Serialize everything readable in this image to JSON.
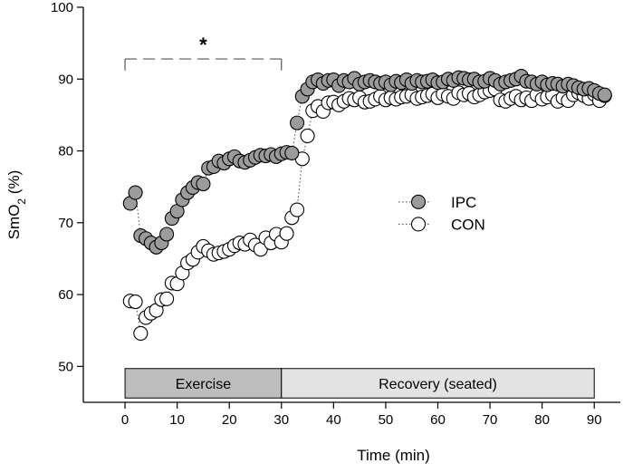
{
  "chart_data": {
    "type": "scatter",
    "xlabel": "Time (min)",
    "ylabel_main": "SmO",
    "ylabel_sub": "2",
    "ylabel_unit": " (%)",
    "xlim": [
      -8,
      95
    ],
    "ylim": [
      45,
      100
    ],
    "xticks": [
      0,
      10,
      20,
      30,
      40,
      50,
      60,
      70,
      80,
      90
    ],
    "yticks": [
      50,
      60,
      70,
      80,
      90,
      100
    ],
    "significance": {
      "from": 0,
      "to": 30,
      "symbol": "*"
    },
    "phases": [
      {
        "label": "Exercise",
        "from": 0,
        "to": 30,
        "fill": "#bdbdbd"
      },
      {
        "label": "Recovery (seated)",
        "from": 30,
        "to": 90,
        "fill": "#e3e3e3"
      }
    ],
    "colors": {
      "ipc_fill": "#9b9b9b",
      "con_fill": "#ffffff",
      "stroke": "#000000"
    },
    "series": [
      {
        "name": "IPC",
        "x": [
          1,
          2,
          3,
          4,
          5,
          6,
          7,
          8,
          9,
          10,
          11,
          12,
          13,
          14,
          15,
          16,
          17,
          18,
          19,
          20,
          21,
          22,
          23,
          24,
          25,
          26,
          27,
          28,
          29,
          30,
          31,
          32,
          33,
          34,
          35,
          36,
          37,
          38,
          39,
          40,
          41,
          42,
          43,
          44,
          45,
          46,
          47,
          48,
          49,
          50,
          51,
          52,
          53,
          54,
          55,
          56,
          57,
          58,
          59,
          60,
          61,
          62,
          63,
          64,
          65,
          66,
          67,
          68,
          69,
          70,
          71,
          72,
          73,
          74,
          75,
          76,
          77,
          78,
          79,
          80,
          81,
          82,
          83,
          84,
          85,
          86,
          87,
          88,
          89,
          90,
          91,
          92
        ],
        "values": [
          72.7,
          74.2,
          68.2,
          67.8,
          67.2,
          66.6,
          67.2,
          68.4,
          70.6,
          71.6,
          73.2,
          74.2,
          74.9,
          75.6,
          75.4,
          77.6,
          77.8,
          78.6,
          78.3,
          78.9,
          79.2,
          78.6,
          78.4,
          78.7,
          79.1,
          79.4,
          79.3,
          79.5,
          79.2,
          79.6,
          79.8,
          79.7,
          83.9,
          87.6,
          88.6,
          89.6,
          89.9,
          89.4,
          89.8,
          89.9,
          89.1,
          89.8,
          89.6,
          90.1,
          89.3,
          89.6,
          89.8,
          89.6,
          89.4,
          89.6,
          89.2,
          89.7,
          89.5,
          89.9,
          89.4,
          89.8,
          89.6,
          89.7,
          89.9,
          89.5,
          89.6,
          90.0,
          89.8,
          90.2,
          90.1,
          89.9,
          90.0,
          89.6,
          89.7,
          90.1,
          89.8,
          89.3,
          89.6,
          89.8,
          90.0,
          90.4,
          89.7,
          89.6,
          89.3,
          89.6,
          89.2,
          89.4,
          89.3,
          89.0,
          89.3,
          89.1,
          88.8,
          88.6,
          88.7,
          88.4,
          88.0,
          87.8
        ]
      },
      {
        "name": "CON",
        "x": [
          1,
          2,
          3,
          4,
          5,
          6,
          7,
          8,
          9,
          10,
          11,
          12,
          13,
          14,
          15,
          16,
          17,
          18,
          19,
          20,
          21,
          22,
          23,
          24,
          25,
          26,
          27,
          28,
          29,
          30,
          31,
          32,
          33,
          34,
          35,
          36,
          37,
          38,
          39,
          40,
          41,
          42,
          43,
          44,
          45,
          46,
          47,
          48,
          49,
          50,
          51,
          52,
          53,
          54,
          55,
          56,
          57,
          58,
          59,
          60,
          61,
          62,
          63,
          64,
          65,
          66,
          67,
          68,
          69,
          70,
          71,
          72,
          73,
          74,
          75,
          76,
          77,
          78,
          79,
          80,
          81,
          82,
          83,
          84,
          85,
          86,
          87,
          88,
          89,
          90,
          91,
          92
        ],
        "values": [
          59.1,
          59.0,
          54.6,
          56.8,
          57.4,
          57.8,
          59.3,
          59.4,
          61.6,
          61.5,
          63.0,
          64.4,
          64.9,
          65.9,
          66.7,
          66.1,
          65.6,
          65.8,
          66.0,
          66.3,
          66.8,
          67.2,
          67.0,
          67.6,
          66.9,
          66.3,
          67.9,
          67.2,
          68.4,
          67.3,
          68.5,
          70.7,
          71.8,
          78.9,
          82.1,
          85.6,
          86.2,
          85.5,
          86.7,
          86.8,
          86.4,
          86.9,
          87.3,
          87.1,
          87.4,
          86.8,
          86.9,
          87.2,
          87.6,
          87.1,
          87.4,
          87.2,
          87.5,
          87.6,
          87.8,
          87.3,
          87.5,
          87.7,
          87.9,
          87.4,
          87.9,
          87.6,
          87.3,
          88.1,
          87.8,
          88.0,
          87.5,
          87.8,
          88.2,
          88.4,
          88.6,
          87.1,
          86.9,
          87.3,
          87.6,
          87.1,
          87.4,
          87.0,
          87.8,
          87.2,
          87.5,
          87.8,
          86.9,
          87.4,
          87.0,
          87.8,
          88.1,
          87.7,
          87.3,
          87.9,
          87.0,
          87.7
        ]
      }
    ]
  }
}
